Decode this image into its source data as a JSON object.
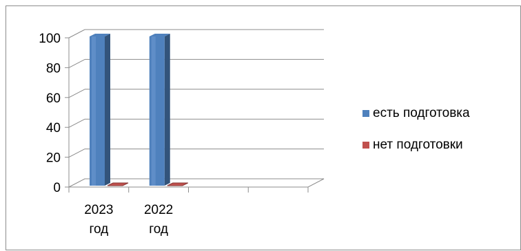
{
  "chart_data": {
    "type": "bar",
    "three_d": true,
    "categories": [
      "2023 год",
      "2022 год",
      "",
      ""
    ],
    "series": [
      {
        "name": "есть подготовка",
        "values": [
          100,
          100,
          null,
          null
        ],
        "color": "#4F81BD"
      },
      {
        "name": "нет подготовки",
        "values": [
          0,
          0,
          null,
          null
        ],
        "color": "#C0504D"
      }
    ],
    "yticks": [
      0,
      20,
      40,
      60,
      80,
      100
    ],
    "ylim": [
      0,
      100
    ],
    "grid": true,
    "legend_position": "right",
    "xlabel": "",
    "ylabel": "",
    "title": ""
  }
}
